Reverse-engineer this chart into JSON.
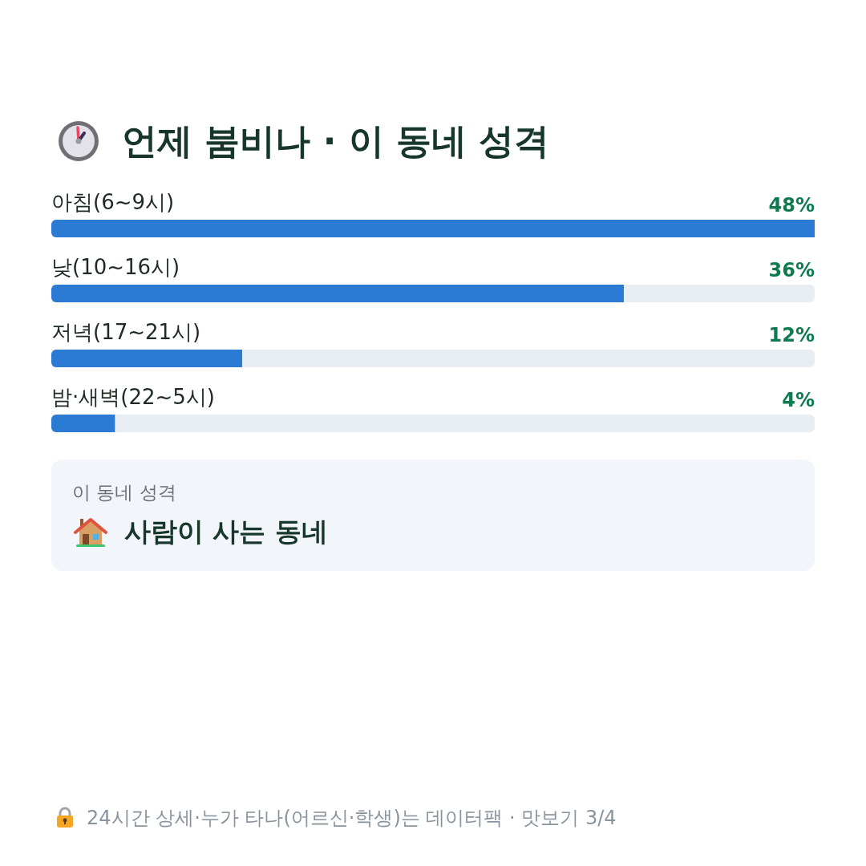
{
  "chart_data": {
    "type": "bar",
    "orientation": "horizontal",
    "title": "언제 붐비나 · 이 동네 성격",
    "categories": [
      "아침(6~9시)",
      "낮(10~16시)",
      "저녁(17~21시)",
      "밤·새벽(22~5시)"
    ],
    "values": [
      48,
      36,
      12,
      4
    ],
    "value_labels": [
      "48%",
      "36%",
      "12%",
      "4%"
    ],
    "color": "#2b7bd4",
    "tick_labels": "y",
    "annotations": [
      "이 동네 성격",
      "사람이 사는 동네",
      "24시간 상세·누가 타나(어르신·학생)는 데이터팩 · 맛보기 3/4"
    ]
  }
}
